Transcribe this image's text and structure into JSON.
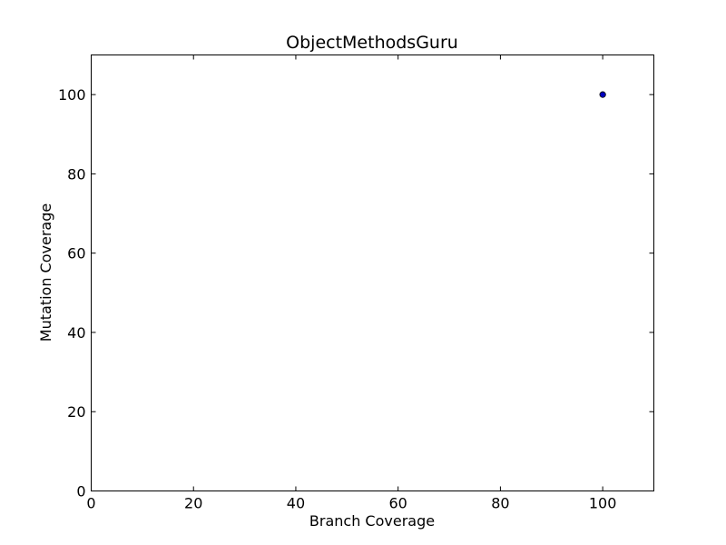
{
  "chart_data": {
    "type": "scatter",
    "title": "ObjectMethodsGuru",
    "xlabel": "Branch Coverage",
    "ylabel": "Mutation Coverage",
    "xlim": [
      0,
      110
    ],
    "ylim": [
      0,
      110
    ],
    "xticks": [
      0,
      20,
      40,
      60,
      80,
      100
    ],
    "yticks": [
      0,
      20,
      40,
      60,
      80,
      100
    ],
    "grid": false,
    "legend": "none",
    "series": [
      {
        "points": [
          {
            "x": 100,
            "y": 100
          }
        ],
        "color": "#0000bf"
      }
    ]
  }
}
